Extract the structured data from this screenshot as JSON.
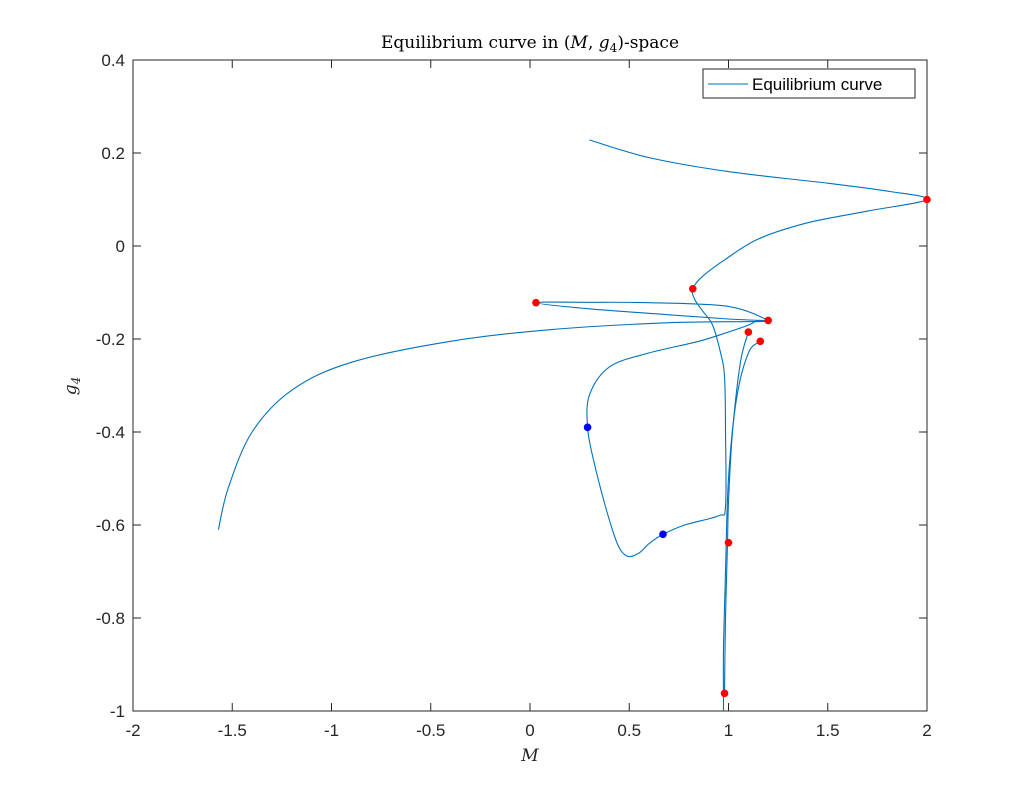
{
  "chart_data": {
    "type": "line",
    "title": "Equilibrium curve in (M, g4)-space",
    "xlabel": "M",
    "ylabel": "g4",
    "xlim": [
      -2,
      2
    ],
    "ylim": [
      -1,
      0.4
    ],
    "xticks": [
      "-2",
      "-1.5",
      "-1",
      "-0.5",
      "0",
      "0.5",
      "1",
      "1.5",
      "2"
    ],
    "yticks": [
      "-1",
      "-0.8",
      "-0.6",
      "-0.4",
      "-0.2",
      "0",
      "0.2",
      "0.4"
    ],
    "grid": false,
    "legend_position": "top-right",
    "series": [
      {
        "name": "Equilibrium curve",
        "color": "#0072BD",
        "points": [
          [
            0.3,
            0.228
          ],
          [
            0.6,
            0.19
          ],
          [
            1.0,
            0.16
          ],
          [
            1.5,
            0.135
          ],
          [
            1.8,
            0.118
          ],
          [
            2.0,
            0.1
          ],
          [
            1.7,
            0.075
          ],
          [
            1.4,
            0.05
          ],
          [
            1.15,
            0.015
          ],
          [
            0.98,
            -0.03
          ],
          [
            0.87,
            -0.065
          ],
          [
            0.82,
            -0.092
          ],
          [
            0.83,
            -0.115
          ],
          [
            0.87,
            -0.14
          ],
          [
            0.92,
            -0.17
          ],
          [
            0.96,
            -0.23
          ],
          [
            0.98,
            -0.28
          ],
          [
            0.985,
            -0.4
          ],
          [
            0.985,
            -0.56
          ],
          [
            0.95,
            -0.58
          ],
          [
            0.78,
            -0.6
          ],
          [
            0.67,
            -0.62
          ],
          [
            0.6,
            -0.64
          ],
          [
            0.55,
            -0.66
          ],
          [
            0.49,
            -0.667
          ],
          [
            0.44,
            -0.64
          ],
          [
            0.38,
            -0.56
          ],
          [
            0.32,
            -0.46
          ],
          [
            0.29,
            -0.39
          ],
          [
            0.3,
            -0.32
          ],
          [
            0.4,
            -0.26
          ],
          [
            0.6,
            -0.23
          ],
          [
            0.85,
            -0.205
          ],
          [
            1.0,
            -0.185
          ],
          [
            1.1,
            -0.17
          ],
          [
            1.15,
            -0.16
          ],
          [
            1.2,
            -0.16
          ],
          [
            1.0,
            -0.13
          ],
          [
            0.6,
            -0.122
          ],
          [
            0.3,
            -0.121
          ],
          [
            0.03,
            -0.122
          ],
          [
            0.3,
            -0.135
          ],
          [
            0.7,
            -0.148
          ],
          [
            1.0,
            -0.157
          ],
          [
            1.2,
            -0.162
          ],
          [
            0.7,
            -0.165
          ],
          [
            0.1,
            -0.18
          ],
          [
            -0.4,
            -0.205
          ],
          [
            -0.9,
            -0.25
          ],
          [
            -1.2,
            -0.31
          ],
          [
            -1.4,
            -0.4
          ],
          [
            -1.52,
            -0.52
          ],
          [
            -1.57,
            -0.61
          ]
        ]
      },
      {
        "name": "",
        "color": "#0072BD",
        "points": [
          [
            1.16,
            -0.205
          ],
          [
            1.1,
            -0.23
          ],
          [
            1.04,
            -0.33
          ],
          [
            1.0,
            -0.5
          ],
          [
            0.985,
            -0.7
          ],
          [
            0.975,
            -0.86
          ],
          [
            0.975,
            -1.0
          ]
        ]
      },
      {
        "name": "",
        "color": "#0072BD",
        "points": [
          [
            1.1,
            -0.185
          ],
          [
            1.06,
            -0.25
          ],
          [
            1.02,
            -0.4
          ],
          [
            1.0,
            -0.55
          ],
          [
            0.995,
            -0.64
          ],
          [
            0.985,
            -0.8
          ],
          [
            0.98,
            -0.96
          ]
        ]
      }
    ],
    "special_points": [
      {
        "x": 2.0,
        "y": 0.1,
        "color": "#ff0000"
      },
      {
        "x": 0.82,
        "y": -0.092,
        "color": "#ff0000"
      },
      {
        "x": 0.03,
        "y": -0.122,
        "color": "#ff0000"
      },
      {
        "x": 1.2,
        "y": -0.16,
        "color": "#ff0000"
      },
      {
        "x": 1.1,
        "y": -0.185,
        "color": "#ff0000"
      },
      {
        "x": 1.16,
        "y": -0.205,
        "color": "#ff0000"
      },
      {
        "x": 0.29,
        "y": -0.39,
        "color": "#0000ff"
      },
      {
        "x": 0.67,
        "y": -0.62,
        "color": "#0000ff"
      },
      {
        "x": 1.0,
        "y": -0.638,
        "color": "#ff0000"
      },
      {
        "x": 0.98,
        "y": -0.962,
        "color": "#ff0000"
      }
    ]
  }
}
